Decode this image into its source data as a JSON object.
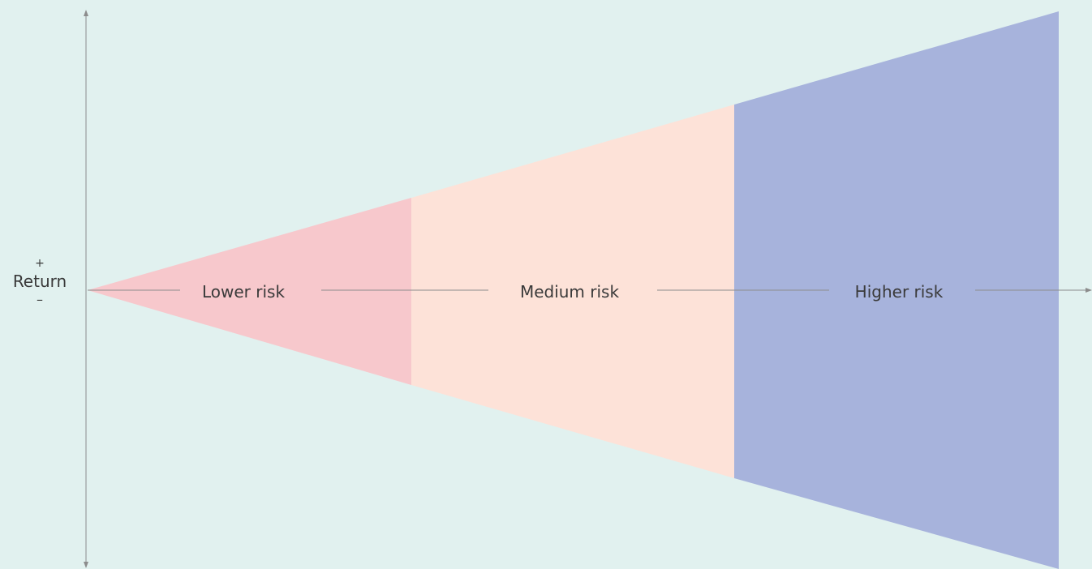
{
  "y_axis": {
    "plus": "+",
    "label": "Return",
    "minus": "–"
  },
  "zones": [
    {
      "label": "Lower risk",
      "color": "#f7c8cc"
    },
    {
      "label": "Medium risk",
      "color": "#fde2d8"
    },
    {
      "label": "Higher risk",
      "color": "#a7b3dc"
    }
  ],
  "colors": {
    "background": "#e1f1ef",
    "axis": "#8c8c8c",
    "text": "#3a3a3a"
  }
}
